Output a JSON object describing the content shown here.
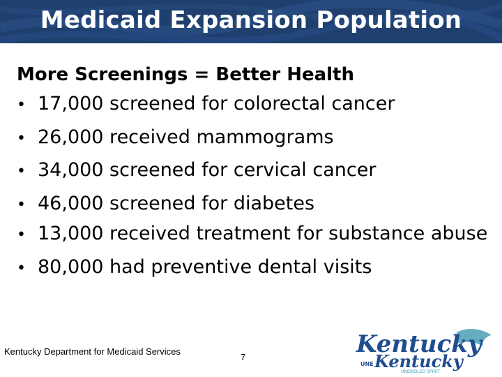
{
  "slide": {
    "title": "Medicaid Expansion Population",
    "subheading": "More Screenings = Better Health",
    "bullets": [
      "17,000 screened for colorectal cancer",
      "26,000 received mammograms",
      "34,000 screened for cervical cancer",
      "46,000 screened for diabetes",
      "13,000 received treatment for substance abuse",
      "80,000 had preventive dental visits"
    ],
    "bullet_glyph": "•"
  },
  "footer": {
    "organization": "Kentucky Department for Medicaid Services",
    "page_number": "7"
  },
  "logo": {
    "wordmark_top": "Kentucky",
    "wordmark_middle": "UNE",
    "wordmark_bottom": "Kentucky",
    "tagline": "UNBRIDLED SPIRIT"
  },
  "colors": {
    "header_bg": "#1f3f6e",
    "title_text": "#ffffff",
    "body_text": "#000000",
    "logo_blue": "#1f4d8f",
    "logo_teal": "#4a9fb5"
  }
}
